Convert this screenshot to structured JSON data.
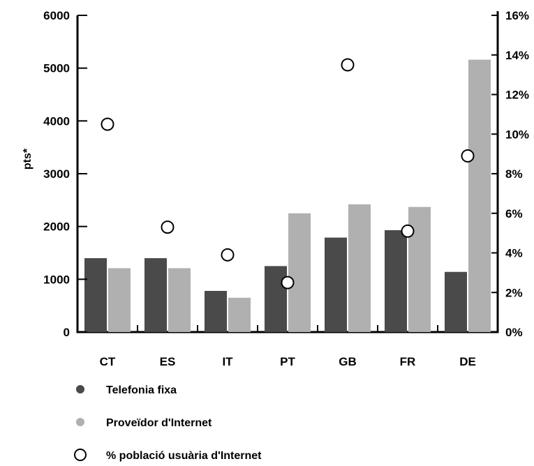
{
  "chart_data": {
    "type": "bar",
    "title": "",
    "categories": [
      "CT",
      "ES",
      "IT",
      "PT",
      "GB",
      "FR",
      "DE"
    ],
    "series": [
      {
        "name": "Telefonia fixa",
        "kind": "bar",
        "axis": "left",
        "color": "#4a4a4a",
        "values": [
          1400,
          1400,
          780,
          1250,
          1790,
          1930,
          1140
        ]
      },
      {
        "name": "Proveïdor d'Internet",
        "kind": "bar",
        "axis": "left",
        "color": "#b0b0b0",
        "values": [
          1210,
          1210,
          650,
          2250,
          2420,
          2370,
          5160
        ]
      },
      {
        "name": "% població usuària d'Internet",
        "kind": "scatter",
        "axis": "right",
        "marker": "open-circle",
        "values": [
          10.5,
          5.3,
          3.9,
          2.5,
          13.5,
          5.1,
          8.9
        ]
      }
    ],
    "y_left": {
      "label": "pts*",
      "ylim": [
        0,
        6000
      ],
      "ticks": [
        0,
        1000,
        2000,
        3000,
        4000,
        5000,
        6000
      ],
      "tick_labels": [
        "0",
        "1000",
        "2000",
        "3000",
        "4000",
        "5000",
        "6000"
      ]
    },
    "y_right": {
      "ylim": [
        0,
        16
      ],
      "ticks": [
        0,
        2,
        4,
        6,
        8,
        10,
        12,
        14,
        16
      ],
      "tick_labels": [
        "0%",
        "2%",
        "4%",
        "6%",
        "8%",
        "10%",
        "12%",
        "14%",
        "16%"
      ]
    },
    "grid": false,
    "legend_position": "bottom-left"
  }
}
